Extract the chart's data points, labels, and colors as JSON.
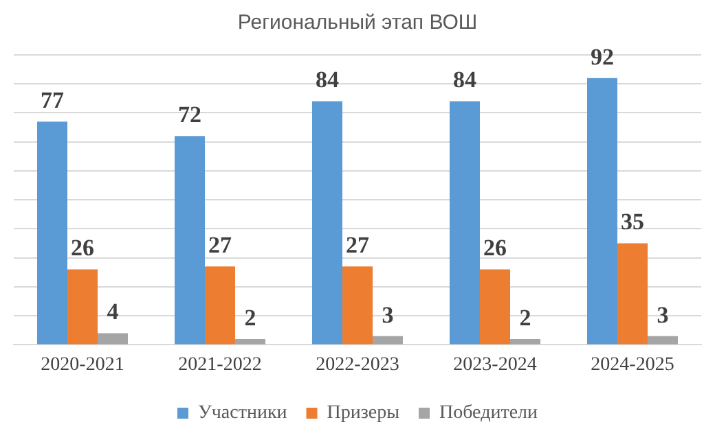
{
  "chart_data": {
    "type": "bar",
    "title": "Региональный этап ВОШ",
    "categories": [
      "2020-2021",
      "2021-2022",
      "2022-2023",
      "2023-2024",
      "2024-2025"
    ],
    "series": [
      {
        "name": "Участники",
        "color": "#5b9bd5",
        "values": [
          77,
          72,
          84,
          84,
          92
        ]
      },
      {
        "name": "Призеры",
        "color": "#ed7d31",
        "values": [
          26,
          27,
          27,
          26,
          35
        ]
      },
      {
        "name": "Победители",
        "color": "#a5a5a5",
        "values": [
          4,
          2,
          3,
          2,
          3
        ]
      }
    ],
    "ylim": [
      0,
      100
    ],
    "yticks": [
      {
        "value": 0,
        "label": null
      },
      {
        "value": 10,
        "label": null
      },
      {
        "value": 20,
        "label": null
      },
      {
        "value": 30,
        "label": null
      },
      {
        "value": 40,
        "label": null
      },
      {
        "value": 50,
        "label": null
      },
      {
        "value": 60,
        "label": null
      },
      {
        "value": 70,
        "label": null
      },
      {
        "value": 80,
        "label": null
      },
      {
        "value": 90,
        "label": null
      },
      {
        "value": 100,
        "label": null
      }
    ],
    "grid": "y",
    "tick_labels": "x",
    "legend": "bottom",
    "data_labels": true
  }
}
